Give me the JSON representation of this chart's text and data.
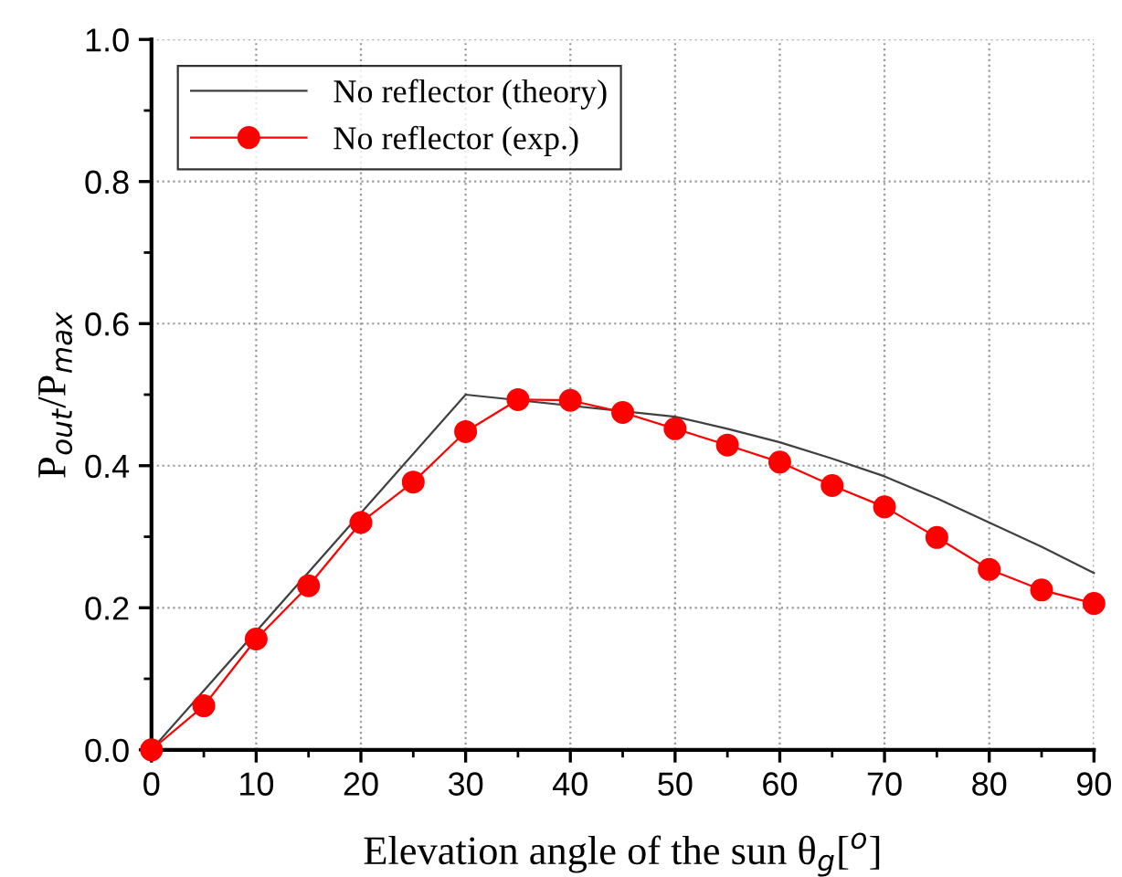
{
  "chart_data": {
    "type": "line",
    "xlabel": "Elevation angle of the sun θ$_{g}$[$^{o}$]",
    "ylabel": "P$_{out}$/P$_{max}$",
    "xlim": [
      0,
      90
    ],
    "ylim": [
      0,
      1.0
    ],
    "xticks": [
      0,
      {
        "value": 5,
        "label": null
      },
      10,
      {
        "value": 15,
        "label": null
      },
      20,
      {
        "value": 25,
        "label": null
      },
      30,
      {
        "value": 35,
        "label": null
      },
      40,
      {
        "value": 45,
        "label": null
      },
      50,
      {
        "value": 55,
        "label": null
      },
      60,
      {
        "value": 65,
        "label": null
      },
      70,
      {
        "value": 75,
        "label": null
      },
      80,
      {
        "value": 85,
        "label": null
      },
      90
    ],
    "yticks": [
      {
        "value": 0,
        "label": "0.0"
      },
      {
        "value": 0.1,
        "label": null
      },
      0.2,
      {
        "value": 0.3,
        "label": null
      },
      0.4,
      {
        "value": 0.5,
        "label": null
      },
      0.6,
      {
        "value": 0.7,
        "label": null
      },
      0.8,
      {
        "value": 0.9,
        "label": null
      },
      {
        "value": 1.0,
        "label": "1.0"
      }
    ],
    "grid": true,
    "legend": "top left",
    "series": [
      {
        "name": "No reflector (theory)",
        "color": "#404040",
        "marker": "none",
        "x": [
          0,
          30,
          50,
          55,
          60,
          65,
          70,
          75,
          80,
          85,
          90
        ],
        "values": [
          0,
          0.5,
          0.469,
          0.452,
          0.433,
          0.41,
          0.385,
          0.354,
          0.32,
          0.286,
          0.249
        ]
      },
      {
        "name": "No reflector (exp.)",
        "color": "#ff0000",
        "marker": "circle",
        "x": [
          0,
          5,
          10,
          15,
          20,
          25,
          30,
          35,
          40,
          45,
          50,
          55,
          60,
          65,
          70,
          75,
          80,
          85,
          90
        ],
        "values": [
          0,
          0.062,
          0.156,
          0.231,
          0.32,
          0.377,
          0.448,
          0.493,
          0.492,
          0.475,
          0.452,
          0.429,
          0.405,
          0.372,
          0.342,
          0.299,
          0.254,
          0.225,
          0.206
        ]
      }
    ]
  }
}
